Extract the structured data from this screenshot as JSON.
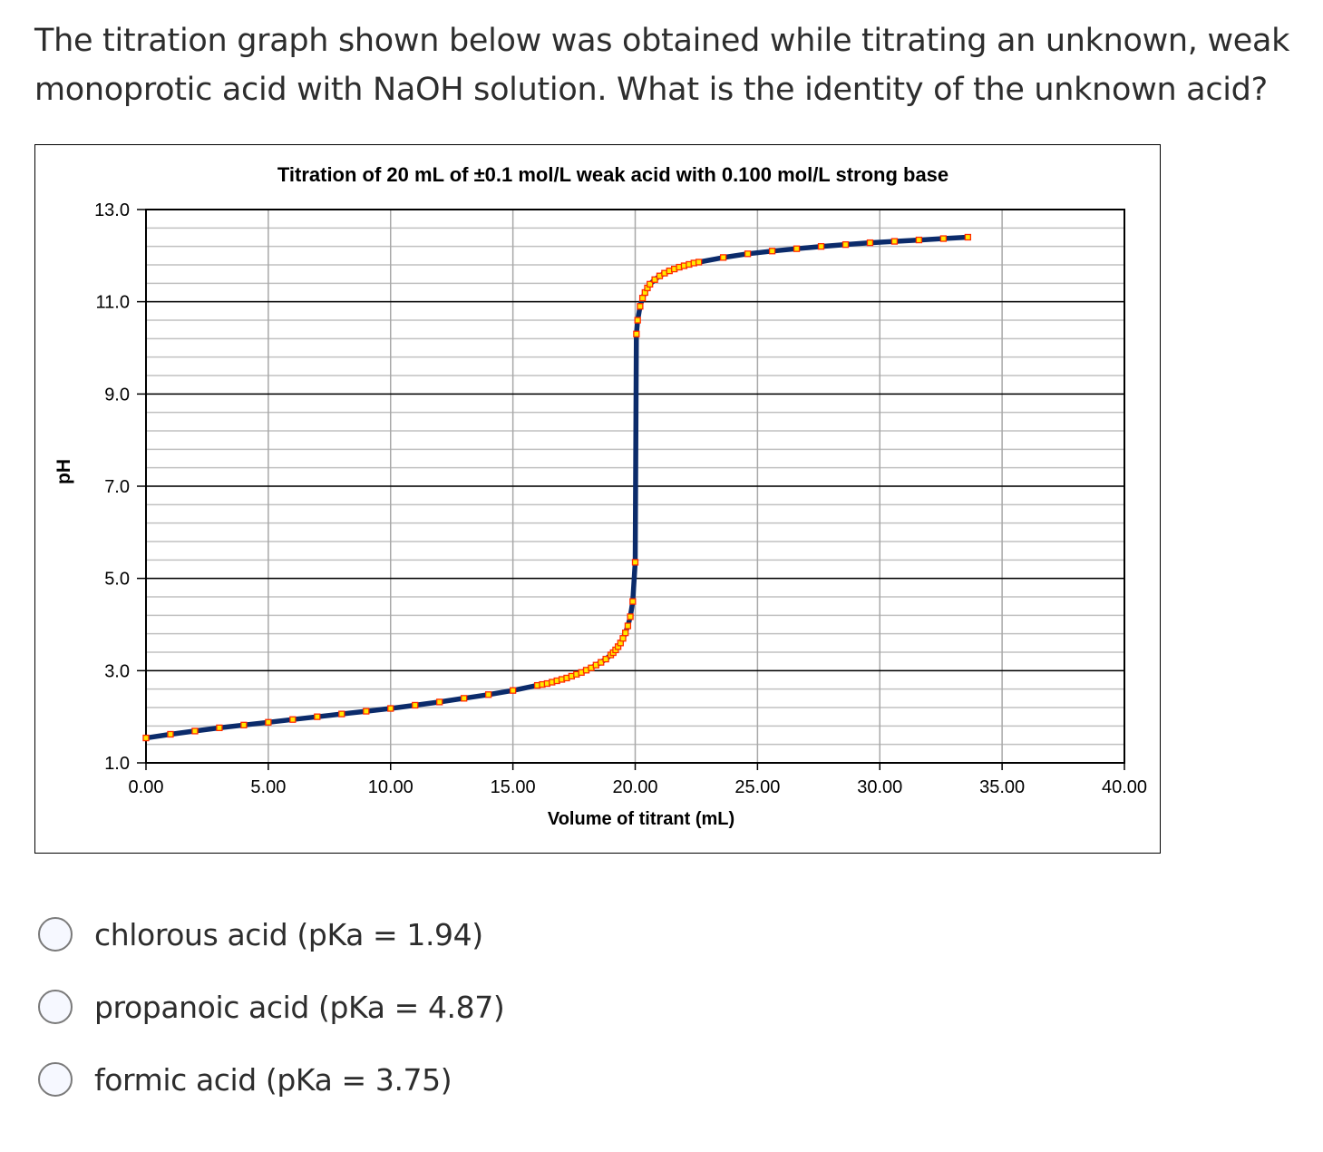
{
  "question": {
    "text": "The titration graph shown below was obtained while titrating an unknown, weak monoprotic acid with NaOH solution. What is the identity of the unknown acid?"
  },
  "options": [
    {
      "label": "chlorous acid (pKa = 1.94)",
      "selected": false
    },
    {
      "label": "propanoic acid (pKa = 4.87)",
      "selected": false
    },
    {
      "label": "formic acid (pKa = 3.75)",
      "selected": false
    }
  ],
  "colors": {
    "line": "#0b2b6b",
    "marker_fill": "#ffe800",
    "marker_edge": "#ff2a00",
    "major_grid": "#000000",
    "minor_grid": "#c0c0c0",
    "vertical_grid": "#a8a8a8"
  },
  "chart_data": {
    "type": "line",
    "title": "Titration of  20 mL of  ±0.1 mol/L weak acid with 0.100 mol/L strong base",
    "xlabel": "Volume of titrant (mL)",
    "ylabel": "pH",
    "xlim": [
      0,
      40
    ],
    "ylim": [
      1,
      13
    ],
    "x_ticks": [
      "0.00",
      "5.00",
      "10.00",
      "15.00",
      "20.00",
      "25.00",
      "30.00",
      "35.00",
      "40.00"
    ],
    "y_ticks": [
      "1.0",
      "3.0",
      "5.0",
      "7.0",
      "9.0",
      "11.0",
      "13.0"
    ],
    "grid": true,
    "legend": null,
    "series": [
      {
        "name": "pH",
        "x": [
          0,
          1,
          2,
          3,
          4,
          5,
          6,
          7,
          8,
          9,
          10,
          11,
          12,
          13,
          14,
          15,
          16,
          16.2,
          16.4,
          16.6,
          16.8,
          17,
          17.2,
          17.4,
          17.6,
          17.8,
          18,
          18.2,
          18.4,
          18.6,
          18.8,
          19,
          19.1,
          19.2,
          19.3,
          19.4,
          19.5,
          19.6,
          19.7,
          19.8,
          19.9,
          20,
          20.05,
          20.1,
          20.2,
          20.3,
          20.4,
          20.5,
          20.6,
          20.8,
          21,
          21.2,
          21.4,
          21.6,
          21.8,
          22,
          22.2,
          22.4,
          22.6,
          23.6,
          24.6,
          25.6,
          26.6,
          27.6,
          28.6,
          29.6,
          30.6,
          31.6,
          32.6,
          33.6
        ],
        "y": [
          1.54,
          1.62,
          1.69,
          1.76,
          1.82,
          1.88,
          1.94,
          2.0,
          2.06,
          2.12,
          2.18,
          2.25,
          2.32,
          2.4,
          2.48,
          2.57,
          2.68,
          2.7,
          2.72,
          2.75,
          2.78,
          2.81,
          2.84,
          2.88,
          2.92,
          2.96,
          3.01,
          3.06,
          3.12,
          3.18,
          3.25,
          3.34,
          3.39,
          3.45,
          3.52,
          3.6,
          3.7,
          3.82,
          3.97,
          4.17,
          4.5,
          5.35,
          10.3,
          10.6,
          10.9,
          11.08,
          11.2,
          11.3,
          11.38,
          11.48,
          11.56,
          11.62,
          11.67,
          11.71,
          11.75,
          11.78,
          11.81,
          11.84,
          11.86,
          11.96,
          12.04,
          12.1,
          12.15,
          12.2,
          12.24,
          12.28,
          12.31,
          12.34,
          12.37,
          12.4
        ]
      }
    ]
  }
}
